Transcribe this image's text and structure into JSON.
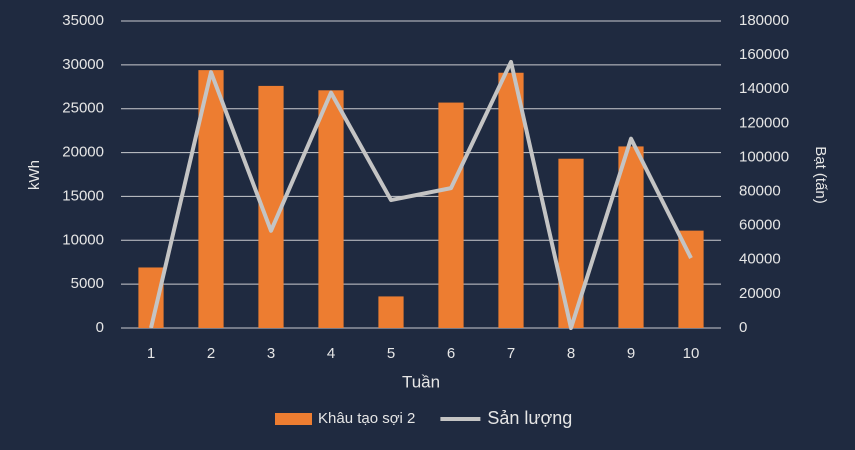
{
  "chart_data": {
    "type": "bar_line",
    "x_label": "Tuần",
    "y_label": "kWh",
    "y2_label": "Bạt (tấn)",
    "categories": [
      "1",
      "2",
      "3",
      "4",
      "5",
      "6",
      "7",
      "8",
      "9",
      "10"
    ],
    "series": [
      {
        "name": "Khâu tạo sợi 2",
        "type": "bar",
        "color": "#ed7d31",
        "values": [
          6900,
          29400,
          27600,
          27100,
          3600,
          25700,
          29100,
          19300,
          20700,
          11100
        ]
      },
      {
        "name": "Sản lượng",
        "type": "line",
        "axis": "y2",
        "color": "#c4c4c4",
        "values": [
          0,
          150000,
          57000,
          138000,
          75000,
          82000,
          156000,
          0,
          111000,
          41000
        ]
      }
    ],
    "ylim": [
      0,
      35000
    ],
    "yticks": [
      0,
      5000,
      10000,
      15000,
      20000,
      25000,
      30000,
      35000
    ],
    "y2lim": [
      0,
      180000
    ],
    "y2ticks": [
      0,
      20000,
      40000,
      60000,
      80000,
      100000,
      120000,
      140000,
      160000,
      180000
    ],
    "grid": true,
    "legend": "bottom"
  }
}
